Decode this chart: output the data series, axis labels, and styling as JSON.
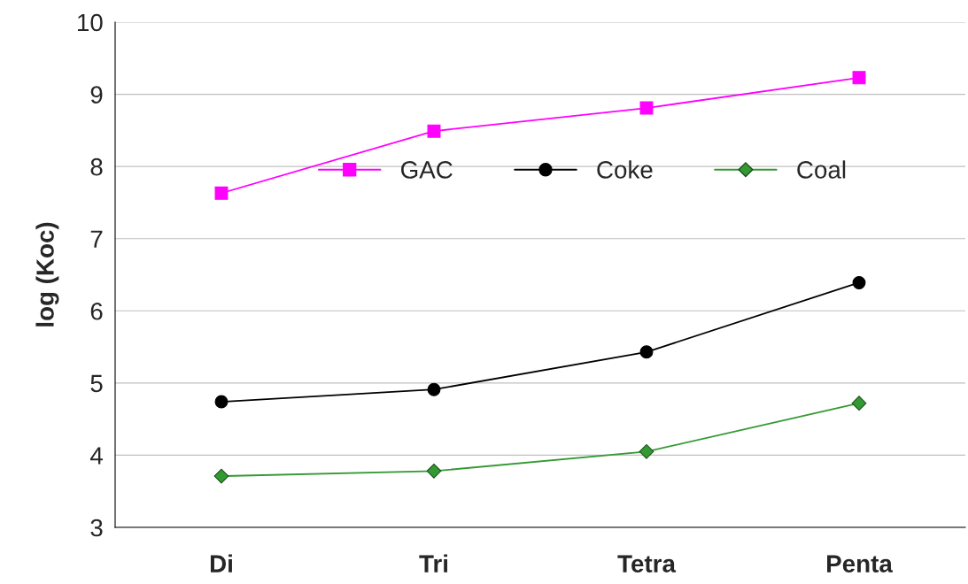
{
  "chart_data": {
    "type": "line",
    "ylabel": "log (Koc)",
    "categories": [
      "Di",
      "Tri",
      "Tetra",
      "Penta"
    ],
    "series": [
      {
        "name": "GAC",
        "color": "#ff00ff",
        "marker": "square",
        "values": [
          7.63,
          8.49,
          8.81,
          9.23
        ]
      },
      {
        "name": "Coke",
        "color": "#000000",
        "marker": "circle",
        "values": [
          4.74,
          4.91,
          5.43,
          6.39
        ]
      },
      {
        "name": "Coal",
        "color": "#339933",
        "marker": "diamond",
        "values": [
          3.71,
          3.78,
          4.05,
          4.72
        ]
      }
    ],
    "ylim": [
      3,
      10
    ],
    "yticks": [
      3,
      4,
      5,
      6,
      7,
      8,
      9,
      10
    ],
    "grid": "y",
    "legend": "top",
    "line_style": "solid"
  }
}
